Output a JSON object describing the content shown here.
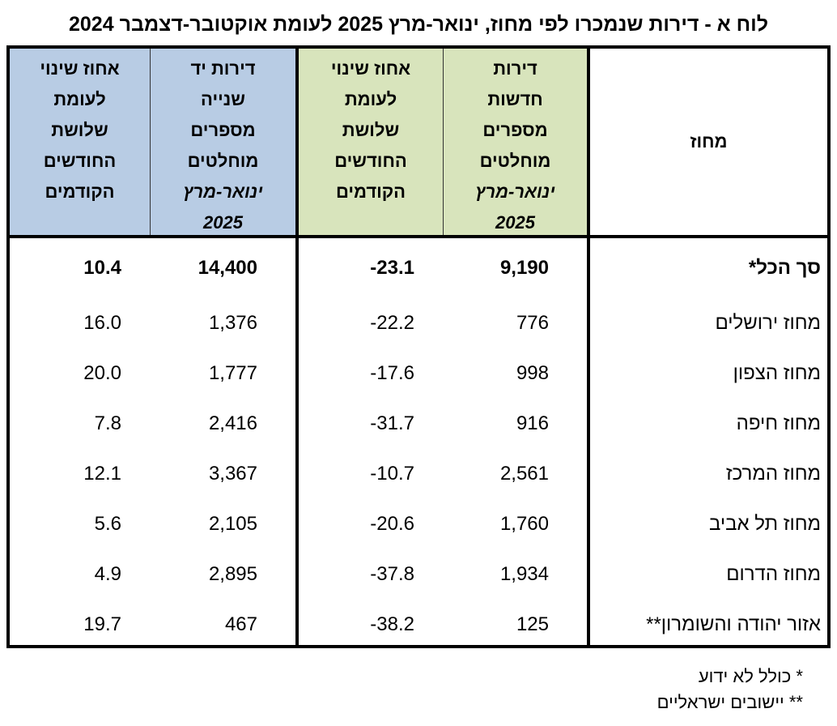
{
  "title": "לוח א - דירות שנמכרו לפי מחוז, ינואר-מרץ 2025 לעומת אוקטובר-דצמבר 2024",
  "headers": {
    "district": "מחוז",
    "new_apartments": [
      "דירות",
      "חדשות",
      "מספרים",
      "מוחלטים",
      "ינואר-מרץ",
      "2025"
    ],
    "new_change": [
      "אחוז שינוי",
      "לעומת",
      "שלושת",
      "החודשים",
      "הקודמים"
    ],
    "used_apartments": [
      "דירות יד",
      "שנייה",
      "מספרים",
      "מוחלטים",
      "ינואר-מרץ",
      "2025"
    ],
    "used_change": [
      "אחוז שינוי",
      "לעומת",
      "שלושת",
      "החודשים",
      "הקודמים"
    ]
  },
  "rows": [
    {
      "district": "סך הכל*",
      "new": "9,190",
      "new_change": "-23.1",
      "used": "14,400",
      "used_change": "10.4"
    },
    {
      "district": "מחוז ירושלים",
      "new": "776",
      "new_change": "-22.2",
      "used": "1,376",
      "used_change": "16.0"
    },
    {
      "district": "מחוז הצפון",
      "new": "998",
      "new_change": "-17.6",
      "used": "1,777",
      "used_change": "20.0"
    },
    {
      "district": "מחוז חיפה",
      "new": "916",
      "new_change": "-31.7",
      "used": "2,416",
      "used_change": "7.8"
    },
    {
      "district": "מחוז המרכז",
      "new": "2,561",
      "new_change": "-10.7",
      "used": "3,367",
      "used_change": "12.1"
    },
    {
      "district": "מחוז תל אביב",
      "new": "1,760",
      "new_change": "-20.6",
      "used": "2,105",
      "used_change": "5.6"
    },
    {
      "district": "מחוז הדרום",
      "new": "1,934",
      "new_change": "-37.8",
      "used": "2,895",
      "used_change": "4.9"
    },
    {
      "district": "אזור יהודה והשומרון**",
      "new": "125",
      "new_change": "-38.2",
      "used": "467",
      "used_change": "19.7"
    }
  ],
  "footnotes": [
    "* כולל לא ידוע",
    "** יישובים ישראליים"
  ],
  "colors": {
    "green_header": "#d8e4bc",
    "blue_header": "#b8cce4"
  }
}
